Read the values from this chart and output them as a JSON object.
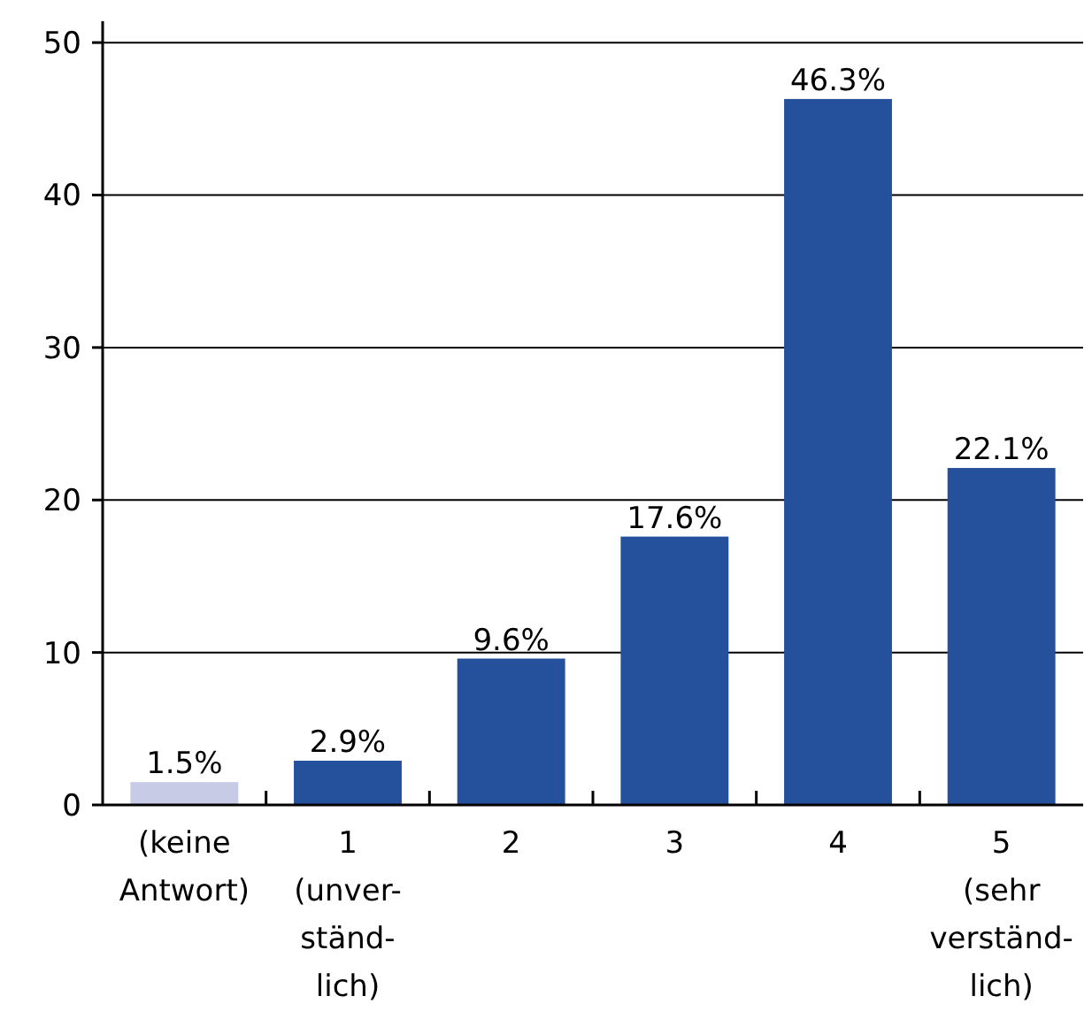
{
  "chart_data": {
    "type": "bar",
    "categories": [
      "(keine\nAntwort)",
      "1\n(unver-\nständ-\nlich)",
      "2",
      "3",
      "4",
      "5\n(sehr\nverständ-\nlich)"
    ],
    "values": [
      1.5,
      2.9,
      9.6,
      17.6,
      46.3,
      22.1
    ],
    "colors": [
      "#c8cbe6",
      "#24509c",
      "#24509c",
      "#24509c",
      "#24509c",
      "#24509c"
    ],
    "value_labels": [
      "1.5%",
      "2.9%",
      "9.6%",
      "17.6%",
      "46.3%",
      "22.1%"
    ],
    "ylim": [
      0,
      51.4
    ],
    "yticks": [
      0,
      10,
      20,
      30,
      40,
      50
    ],
    "grid": "y"
  }
}
